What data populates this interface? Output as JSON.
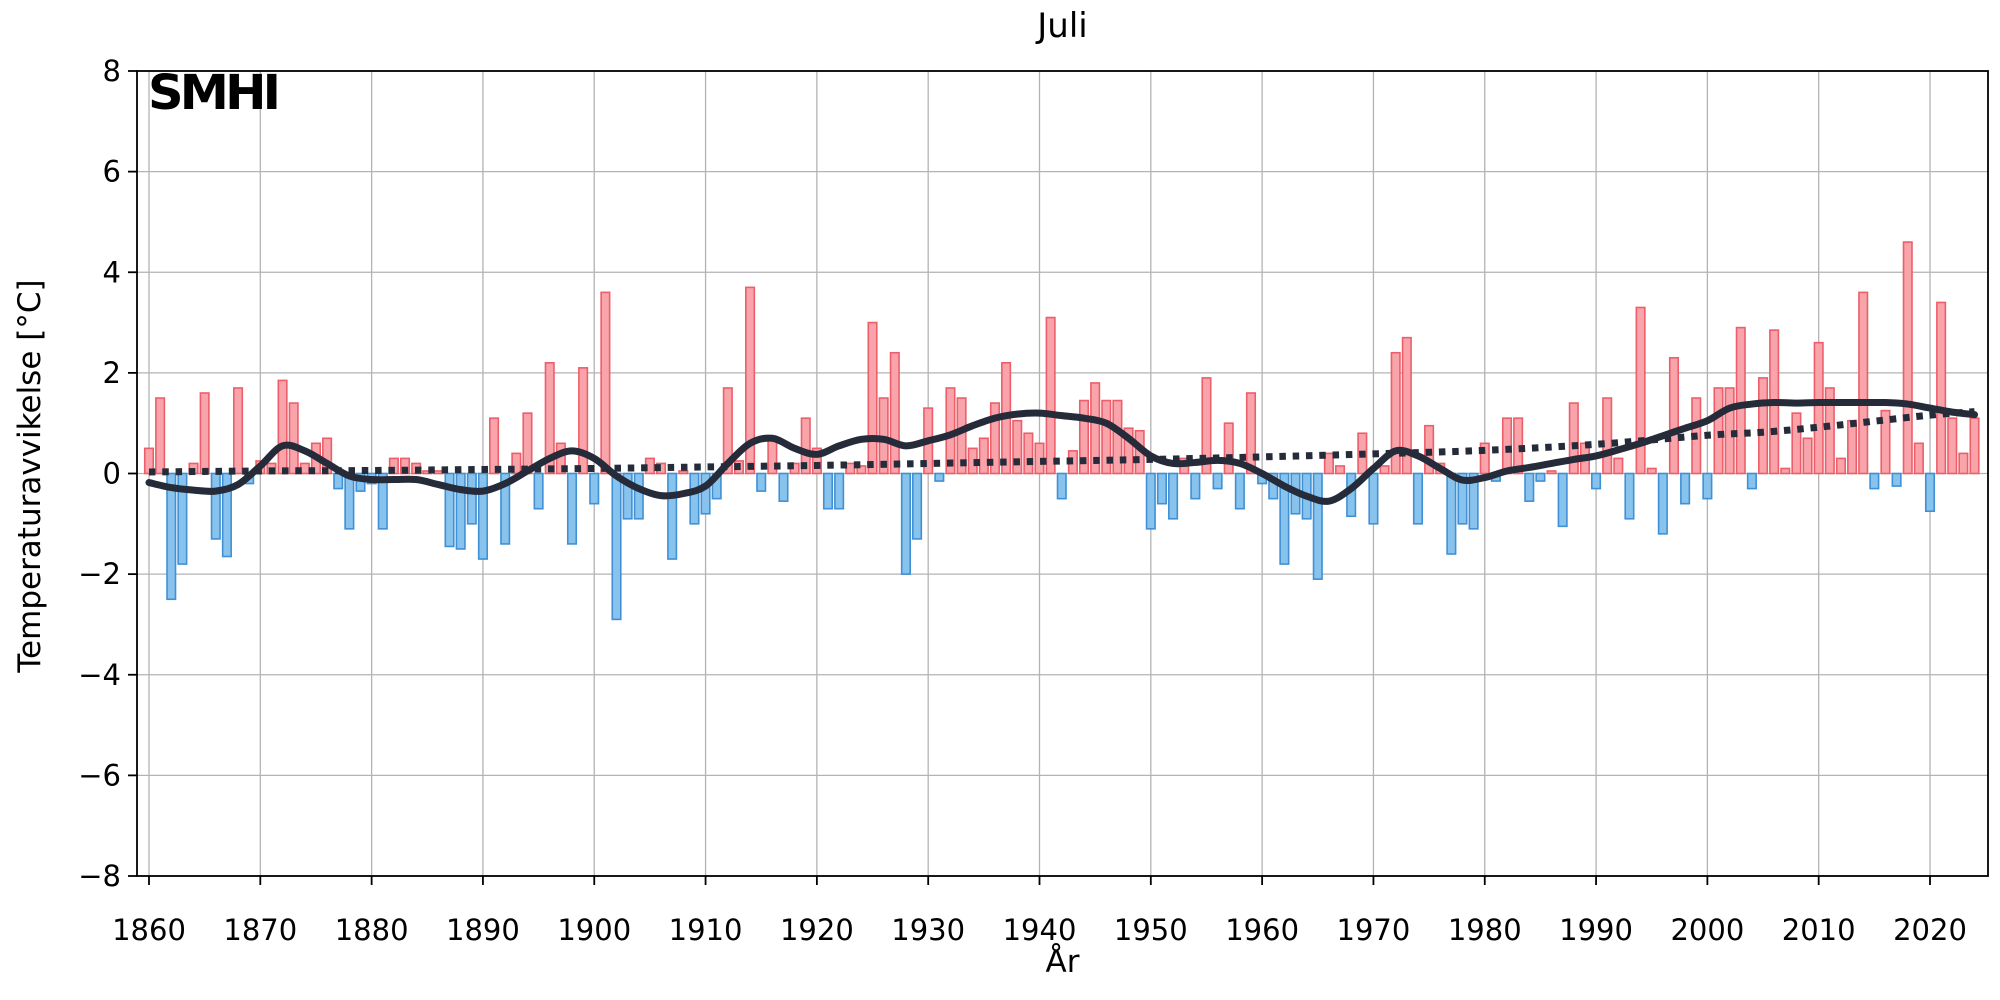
{
  "header": {
    "title": "Juli",
    "logo_text": "SMHI"
  },
  "axes": {
    "xlabel": "År",
    "ylabel": "Temperaturavvikelse [°C]",
    "xticks": [
      {
        "year": 1860,
        "label": "1860"
      },
      {
        "year": 1870,
        "label": "1870"
      },
      {
        "year": 1880,
        "label": "1880"
      },
      {
        "year": 1890,
        "label": "1890"
      },
      {
        "year": 1900,
        "label": "1900"
      },
      {
        "year": 1910,
        "label": "1910"
      },
      {
        "year": 1920,
        "label": "1920"
      },
      {
        "year": 1930,
        "label": "1930"
      },
      {
        "year": 1940,
        "label": "1940"
      },
      {
        "year": 1950,
        "label": "1950"
      },
      {
        "year": 1960,
        "label": "1960"
      },
      {
        "year": 1970,
        "label": "1970"
      },
      {
        "year": 1980,
        "label": "1980"
      },
      {
        "year": 1990,
        "label": "1990"
      },
      {
        "year": 2000,
        "label": "2000"
      },
      {
        "year": 2010,
        "label": "2010"
      },
      {
        "year": 2020,
        "label": "2020"
      }
    ],
    "yticks": [
      {
        "value": 8,
        "label": "8"
      },
      {
        "value": 6,
        "label": "6"
      },
      {
        "value": 4,
        "label": "4"
      },
      {
        "value": 2,
        "label": "2"
      },
      {
        "value": 0,
        "label": "0"
      },
      {
        "value": -2,
        "label": "−2"
      },
      {
        "value": -4,
        "label": "−4"
      },
      {
        "value": -6,
        "label": "−6"
      },
      {
        "value": -8,
        "label": "−8"
      }
    ],
    "ylim": [
      -8,
      8
    ],
    "xlim": [
      1858.9,
      2025.2
    ],
    "grid": true
  },
  "colors": {
    "bar_positive_fill": "#f9a3aa",
    "bar_positive_edge": "#ec5f6a",
    "bar_negative_fill": "#88c3ed",
    "bar_negative_edge": "#4090d5",
    "smoothed_line": "#252b39",
    "trend_line": "#252b39",
    "grid": "#b3b3b3",
    "axis": "#000000"
  },
  "chart_data": {
    "type": "bar",
    "title": "Juli",
    "xlabel": "År",
    "ylabel": "Temperaturavvikelse [°C]",
    "ylim": [
      -8,
      8
    ],
    "grid": true,
    "legend": "none",
    "bar_series_name": "Temperaturavvikelse per år",
    "years": [
      1860,
      1861,
      1862,
      1863,
      1864,
      1865,
      1866,
      1867,
      1868,
      1869,
      1870,
      1871,
      1872,
      1873,
      1874,
      1875,
      1876,
      1877,
      1878,
      1879,
      1880,
      1881,
      1882,
      1883,
      1884,
      1885,
      1886,
      1887,
      1888,
      1889,
      1890,
      1891,
      1892,
      1893,
      1894,
      1895,
      1896,
      1897,
      1898,
      1899,
      1900,
      1901,
      1902,
      1903,
      1904,
      1905,
      1906,
      1907,
      1908,
      1909,
      1910,
      1911,
      1912,
      1913,
      1914,
      1915,
      1916,
      1917,
      1918,
      1919,
      1920,
      1921,
      1922,
      1923,
      1924,
      1925,
      1926,
      1927,
      1928,
      1929,
      1930,
      1931,
      1932,
      1933,
      1934,
      1935,
      1936,
      1937,
      1938,
      1939,
      1940,
      1941,
      1942,
      1943,
      1944,
      1945,
      1946,
      1947,
      1948,
      1949,
      1950,
      1951,
      1952,
      1953,
      1954,
      1955,
      1956,
      1957,
      1958,
      1959,
      1960,
      1961,
      1962,
      1963,
      1964,
      1965,
      1966,
      1967,
      1968,
      1969,
      1970,
      1971,
      1972,
      1973,
      1974,
      1975,
      1976,
      1977,
      1978,
      1979,
      1980,
      1981,
      1982,
      1983,
      1984,
      1985,
      1986,
      1987,
      1988,
      1989,
      1990,
      1991,
      1992,
      1993,
      1994,
      1995,
      1996,
      1997,
      1998,
      1999,
      2000,
      2001,
      2002,
      2003,
      2004,
      2005,
      2006,
      2007,
      2008,
      2009,
      2010,
      2011,
      2012,
      2013,
      2014,
      2015,
      2016,
      2017,
      2018,
      2019,
      2020,
      2021,
      2022,
      2023,
      2024
    ],
    "values": [
      0.5,
      1.5,
      -2.5,
      -1.8,
      0.2,
      1.6,
      -1.3,
      -1.65,
      1.7,
      -0.2,
      0.25,
      0.2,
      1.85,
      1.4,
      0.2,
      0.6,
      0.7,
      -0.3,
      -1.1,
      -0.35,
      -0.2,
      -1.1,
      0.3,
      0.3,
      0.2,
      0.05,
      0.05,
      -1.45,
      -1.5,
      -1.0,
      -1.7,
      1.1,
      -1.4,
      0.4,
      1.2,
      -0.7,
      2.2,
      0.6,
      -1.4,
      2.1,
      -0.6,
      3.6,
      -2.9,
      -0.9,
      -0.9,
      0.3,
      0.2,
      -1.7,
      0.05,
      -1.0,
      -0.8,
      -0.5,
      1.7,
      0.25,
      3.7,
      -0.35,
      0.7,
      -0.55,
      0.2,
      1.1,
      0.5,
      -0.7,
      -0.7,
      0.2,
      0.15,
      3.0,
      1.5,
      2.4,
      -2.0,
      -1.3,
      1.3,
      -0.15,
      1.7,
      1.5,
      0.5,
      0.7,
      1.4,
      2.2,
      1.05,
      0.8,
      0.6,
      3.1,
      -0.5,
      0.45,
      1.45,
      1.8,
      1.45,
      1.45,
      0.9,
      0.85,
      -1.1,
      -0.6,
      -0.9,
      0.3,
      -0.5,
      1.9,
      -0.3,
      1.0,
      -0.7,
      1.6,
      -0.2,
      -0.5,
      -1.8,
      -0.8,
      -0.9,
      -2.1,
      0.4,
      0.15,
      -0.85,
      0.8,
      -1.0,
      0.15,
      2.4,
      2.7,
      -1.0,
      0.95,
      0.2,
      -1.6,
      -1.0,
      -1.1,
      0.6,
      -0.15,
      1.1,
      1.1,
      -0.55,
      -0.15,
      0.05,
      -1.05,
      1.4,
      0.6,
      -0.3,
      1.5,
      0.3,
      -0.9,
      3.3,
      0.1,
      -1.2,
      2.3,
      -0.6,
      1.5,
      -0.5,
      1.7,
      1.7,
      2.9,
      -0.3,
      1.9,
      2.85,
      0.1,
      1.2,
      0.7,
      2.6,
      1.7,
      0.3,
      1.05,
      3.6,
      -0.3,
      1.25,
      -0.25,
      4.6,
      0.6,
      -0.75,
      3.4,
      1.1,
      0.4,
      1.1
    ],
    "smoothed_line": {
      "name": "smoothed-average",
      "x": [
        1860,
        1862,
        1864,
        1866,
        1868,
        1870,
        1872,
        1874,
        1876,
        1878,
        1880,
        1882,
        1884,
        1886,
        1888,
        1890,
        1892,
        1894,
        1896,
        1898,
        1900,
        1902,
        1904,
        1906,
        1908,
        1910,
        1912,
        1914,
        1916,
        1918,
        1920,
        1922,
        1924,
        1926,
        1928,
        1930,
        1932,
        1934,
        1936,
        1938,
        1940,
        1942,
        1944,
        1946,
        1948,
        1950,
        1952,
        1954,
        1956,
        1958,
        1960,
        1962,
        1964,
        1966,
        1968,
        1970,
        1972,
        1974,
        1976,
        1978,
        1980,
        1982,
        1984,
        1986,
        1988,
        1990,
        1992,
        1994,
        1996,
        1998,
        2000,
        2002,
        2004,
        2006,
        2008,
        2010,
        2012,
        2014,
        2016,
        2018,
        2020,
        2022,
        2024
      ],
      "y": [
        -0.18,
        -0.28,
        -0.33,
        -0.35,
        -0.22,
        0.15,
        0.55,
        0.45,
        0.2,
        -0.05,
        -0.12,
        -0.12,
        -0.12,
        -0.22,
        -0.32,
        -0.35,
        -0.2,
        0.05,
        0.3,
        0.45,
        0.3,
        -0.05,
        -0.3,
        -0.44,
        -0.4,
        -0.25,
        0.2,
        0.6,
        0.7,
        0.5,
        0.38,
        0.55,
        0.68,
        0.68,
        0.55,
        0.65,
        0.77,
        0.95,
        1.1,
        1.18,
        1.2,
        1.15,
        1.1,
        1.0,
        0.7,
        0.35,
        0.2,
        0.22,
        0.26,
        0.2,
        0.0,
        -0.25,
        -0.45,
        -0.55,
        -0.3,
        0.1,
        0.45,
        0.35,
        0.1,
        -0.13,
        -0.08,
        0.05,
        0.12,
        0.2,
        0.28,
        0.35,
        0.47,
        0.6,
        0.75,
        0.9,
        1.05,
        1.3,
        1.38,
        1.41,
        1.4,
        1.41,
        1.41,
        1.41,
        1.41,
        1.38,
        1.3,
        1.22,
        1.17
      ]
    },
    "trend_line": {
      "name": "long-term-trend-dotted",
      "x": [
        1860,
        1870,
        1880,
        1890,
        1900,
        1910,
        1920,
        1930,
        1940,
        1950,
        1960,
        1970,
        1980,
        1990,
        2000,
        2005,
        2010,
        2015,
        2020,
        2024
      ],
      "y": [
        0.03,
        0.05,
        0.06,
        0.08,
        0.1,
        0.13,
        0.16,
        0.2,
        0.24,
        0.28,
        0.33,
        0.39,
        0.46,
        0.58,
        0.76,
        0.82,
        0.92,
        1.04,
        1.16,
        1.23
      ]
    }
  }
}
